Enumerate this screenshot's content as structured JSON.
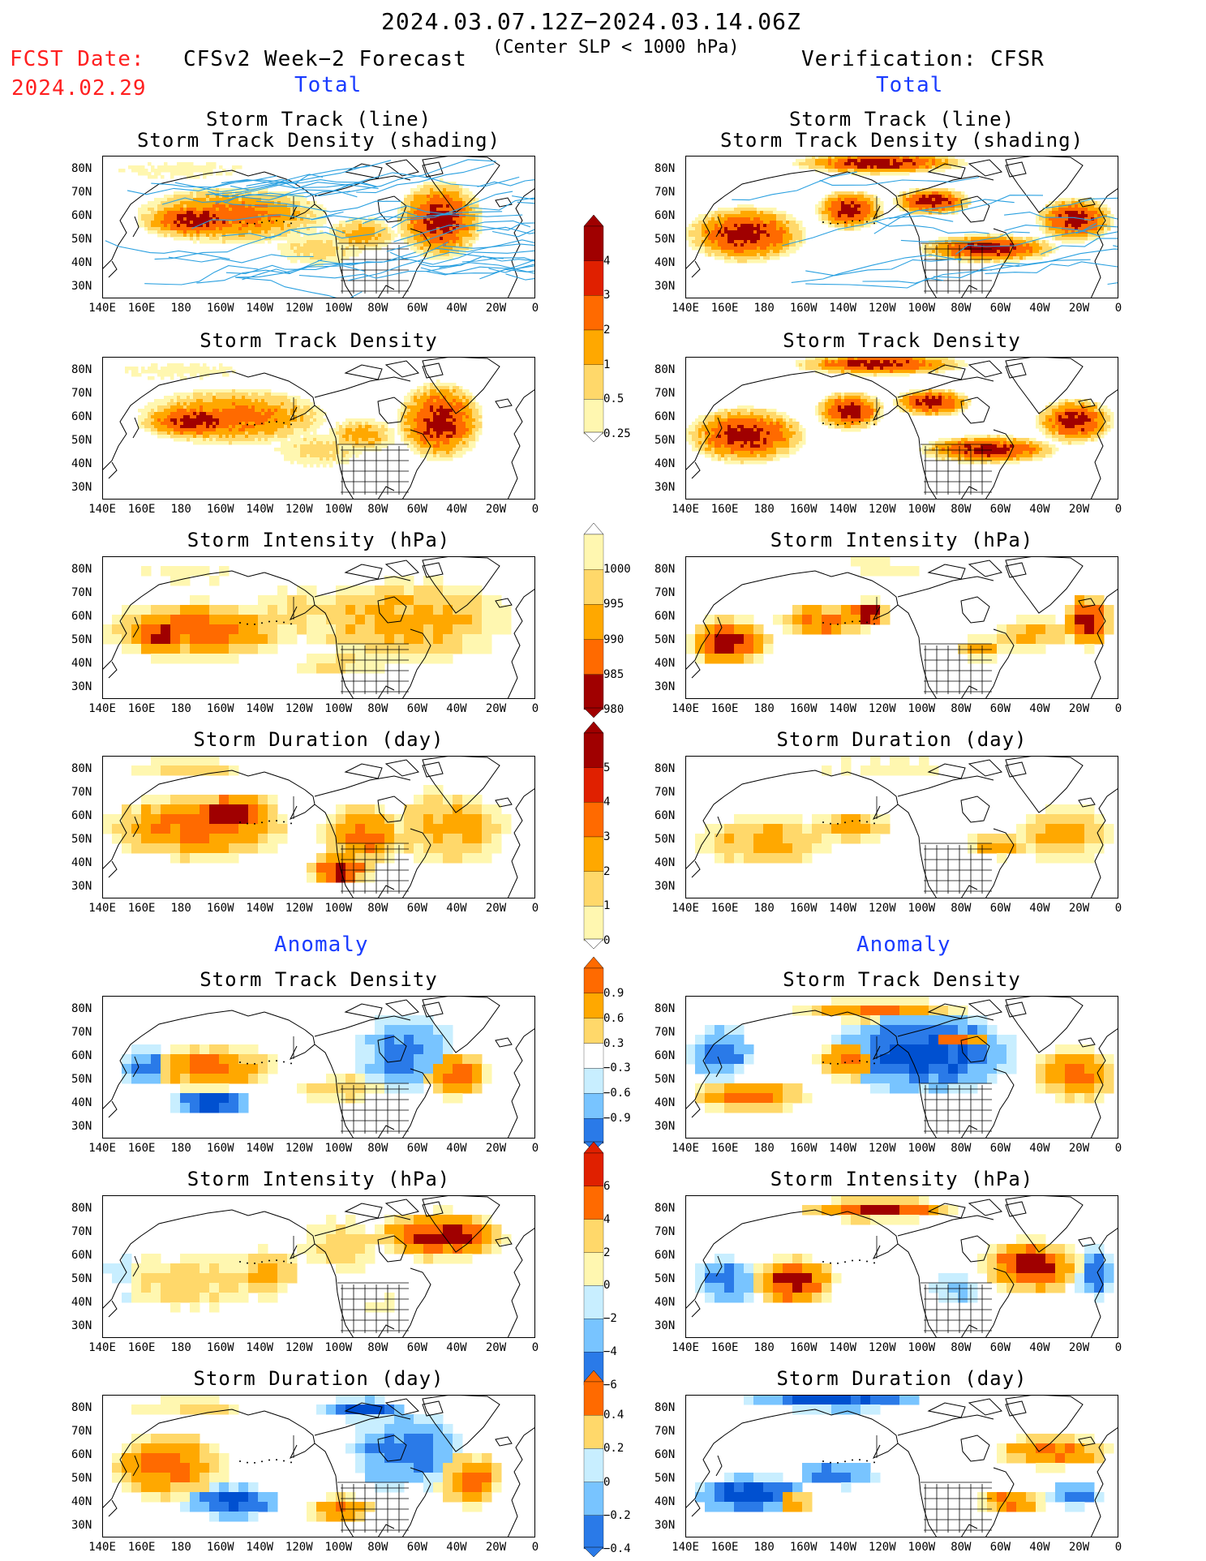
{
  "header": {
    "period": "2024.03.07.12Z−2024.03.14.06Z",
    "criterion": "(Center SLP < 1000 hPa)",
    "fcst_label": "FCST Date:",
    "fcst_date": "2024.02.29",
    "left_model": "CFSv2 Week−2 Forecast",
    "right_model": "Verification: CFSR",
    "total_label": "Total",
    "anomaly_label": "Anomaly"
  },
  "panel_titles": {
    "track_line": "Storm Track (line)",
    "track_shading": "Storm Track Density (shading)",
    "density": "Storm Track Density",
    "intensity": "Storm Intensity (hPa)",
    "duration": "Storm Duration (day)"
  },
  "axes": {
    "lat_labels": [
      "80N",
      "70N",
      "60N",
      "50N",
      "40N",
      "30N"
    ],
    "lon_labels": [
      "140E",
      "160E",
      "180",
      "160W",
      "140W",
      "120W",
      "100W",
      "80W",
      "60W",
      "40W",
      "20W",
      "0"
    ]
  },
  "colorbars": {
    "density_total": [
      "4",
      "3",
      "2",
      "1",
      "0.5",
      "0.25"
    ],
    "intensity_total": [
      "1000",
      "995",
      "990",
      "985",
      "980"
    ],
    "duration_total": [
      "5",
      "4",
      "3",
      "2",
      "1",
      "0"
    ],
    "density_anom": [
      "0.9",
      "0.6",
      "0.3",
      "−0.3",
      "−0.6",
      "−0.9"
    ],
    "intensity_anom": [
      "6",
      "4",
      "2",
      "0",
      "−2",
      "−4",
      "−6"
    ],
    "duration_anom": [
      "0.4",
      "0.2",
      "0",
      "−0.2",
      "−0.4"
    ]
  },
  "colors": {
    "c1": "#fff7b0",
    "c2": "#ffd86a",
    "c3": "#ffa800",
    "c4": "#ff6a00",
    "c5": "#e02000",
    "c6": "#a00000",
    "b1": "#c8eeff",
    "b2": "#78c4ff",
    "b3": "#2a7ae8",
    "b4": "#0050d0",
    "track": "#2aa0e0"
  }
}
